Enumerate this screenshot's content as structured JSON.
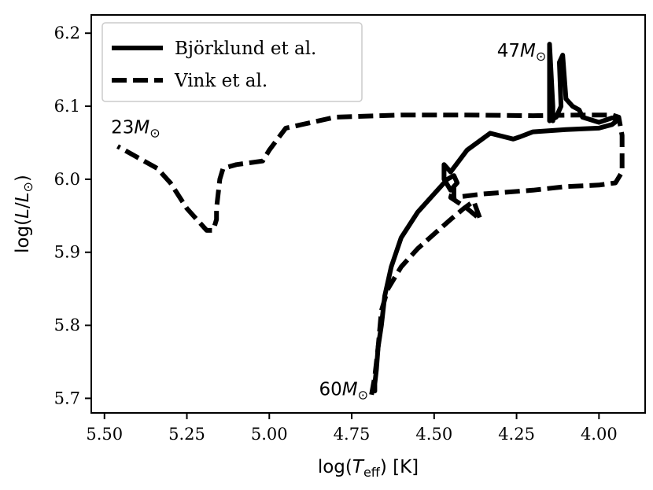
{
  "chart_data": {
    "type": "line",
    "xlabel": "log(T_eff) [K]",
    "ylabel": "log(L/L⊙)",
    "xlim": [
      5.54,
      3.86
    ],
    "ylim": [
      5.68,
      6.225
    ],
    "x_inverted": true,
    "xticks": [
      5.5,
      5.25,
      5.0,
      4.75,
      4.5,
      4.25,
      4.0
    ],
    "xtick_labels": [
      "5.50",
      "5.25",
      "5.00",
      "4.75",
      "4.50",
      "4.25",
      "4.00"
    ],
    "yticks": [
      5.7,
      5.8,
      5.9,
      6.0,
      6.1,
      6.2
    ],
    "ytick_labels": [
      "5.7",
      "5.8",
      "5.9",
      "6.0",
      "6.1",
      "6.2"
    ],
    "grid": false,
    "legend_position": "top-left",
    "series": [
      {
        "name": "Björklund et al.",
        "style": "solid",
        "color": "#000000",
        "points": [
          [
            4.68,
            5.71
          ],
          [
            4.68,
            5.72
          ],
          [
            4.675,
            5.74
          ],
          [
            4.67,
            5.77
          ],
          [
            4.66,
            5.8
          ],
          [
            4.65,
            5.84
          ],
          [
            4.63,
            5.88
          ],
          [
            4.6,
            5.92
          ],
          [
            4.55,
            5.955
          ],
          [
            4.5,
            5.98
          ],
          [
            4.46,
            6.0
          ],
          [
            4.44,
            6.005
          ],
          [
            4.43,
            5.995
          ],
          [
            4.45,
            5.985
          ],
          [
            4.47,
            6.0
          ],
          [
            4.47,
            6.02
          ],
          [
            4.45,
            6.01
          ],
          [
            4.4,
            6.04
          ],
          [
            4.33,
            6.063
          ],
          [
            4.26,
            6.055
          ],
          [
            4.24,
            6.058
          ],
          [
            4.2,
            6.065
          ],
          [
            4.1,
            6.068
          ],
          [
            4.0,
            6.07
          ],
          [
            3.96,
            6.075
          ],
          [
            3.94,
            6.082
          ],
          [
            3.96,
            6.084
          ],
          [
            4.0,
            6.078
          ],
          [
            4.05,
            6.085
          ],
          [
            4.06,
            6.095
          ],
          [
            4.08,
            6.1
          ],
          [
            4.1,
            6.11
          ],
          [
            4.11,
            6.17
          ],
          [
            4.12,
            6.16
          ],
          [
            4.115,
            6.1
          ],
          [
            4.13,
            6.085
          ],
          [
            4.15,
            6.08
          ],
          [
            4.15,
            6.185
          ],
          [
            4.14,
            6.1
          ],
          [
            4.14,
            6.08
          ]
        ]
      },
      {
        "name": "Vink et al.",
        "style": "dashed",
        "color": "#000000",
        "points": [
          [
            4.69,
            5.705
          ],
          [
            4.68,
            5.73
          ],
          [
            4.67,
            5.77
          ],
          [
            4.66,
            5.82
          ],
          [
            4.64,
            5.85
          ],
          [
            4.6,
            5.88
          ],
          [
            4.55,
            5.905
          ],
          [
            4.5,
            5.925
          ],
          [
            4.45,
            5.945
          ],
          [
            4.41,
            5.96
          ],
          [
            4.38,
            5.97
          ],
          [
            4.36,
            5.945
          ],
          [
            4.4,
            5.96
          ],
          [
            4.45,
            5.975
          ],
          [
            4.44,
            5.99
          ],
          [
            4.44,
            5.975
          ],
          [
            4.35,
            5.98
          ],
          [
            4.2,
            5.985
          ],
          [
            4.1,
            5.99
          ],
          [
            4.0,
            5.992
          ],
          [
            3.95,
            5.995
          ],
          [
            3.93,
            6.01
          ],
          [
            3.93,
            6.06
          ],
          [
            3.94,
            6.085
          ],
          [
            3.96,
            6.088
          ],
          [
            4.05,
            6.088
          ],
          [
            4.2,
            6.087
          ],
          [
            4.4,
            6.088
          ],
          [
            4.6,
            6.088
          ],
          [
            4.8,
            6.085
          ],
          [
            4.95,
            6.07
          ],
          [
            5.0,
            6.04
          ],
          [
            5.02,
            6.025
          ],
          [
            5.1,
            6.02
          ],
          [
            5.14,
            6.015
          ],
          [
            5.15,
            6.0
          ],
          [
            5.16,
            5.96
          ],
          [
            5.16,
            5.945
          ],
          [
            5.17,
            5.93
          ],
          [
            5.19,
            5.93
          ],
          [
            5.25,
            5.96
          ],
          [
            5.3,
            5.995
          ],
          [
            5.34,
            6.015
          ],
          [
            5.38,
            6.025
          ],
          [
            5.42,
            6.035
          ],
          [
            5.46,
            6.045
          ]
        ]
      }
    ],
    "annotations": [
      {
        "key": "mass23",
        "text": "23M",
        "x": 5.48,
        "y": 6.063,
        "anchor": "start"
      },
      {
        "key": "mass47",
        "text": "47M",
        "x": 4.16,
        "y": 6.168,
        "anchor": "end"
      },
      {
        "key": "mass60",
        "text": "60M",
        "x": 4.7,
        "y": 5.704,
        "anchor": "end"
      }
    ],
    "solar_subscript": "⊙"
  }
}
